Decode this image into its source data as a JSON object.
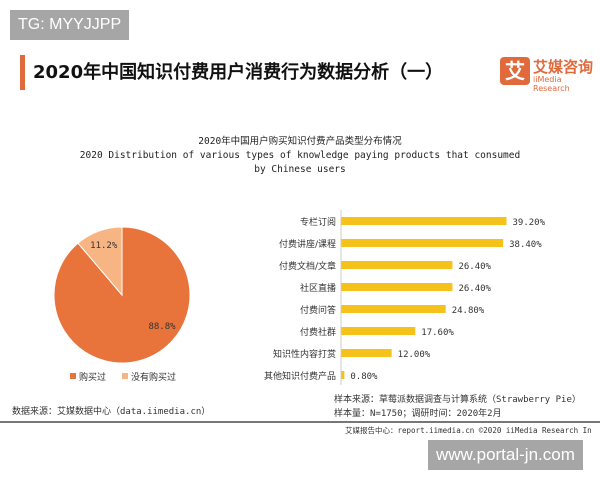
{
  "watermark_top": "TG: MYYJJPP",
  "watermark_bottom": "www.portal-jn.com",
  "header": {
    "title": "2020年中国知识付费用户消费行为数据分析（一）",
    "logo_mark": "艾",
    "logo_cn": "艾媒咨询",
    "logo_en": "iiMedia Research"
  },
  "chart_data": [
    {
      "type": "pie",
      "title": "2020年中国用户购买知识付费产品类型分布情况",
      "subtitle": "2020 Distribution of various types of knowledge paying products that consumed",
      "subtitle2": "by Chinese users",
      "slices": [
        {
          "name": "购买过",
          "value": 88.8,
          "label": "88.8%",
          "color": "#e8743b"
        },
        {
          "name": "没有购买过",
          "value": 11.2,
          "label": "11.2%",
          "color": "#f6b582"
        }
      ],
      "legend": "bottom"
    },
    {
      "type": "bar",
      "orientation": "horizontal",
      "color": "#f5c21b",
      "categories": [
        "专栏订阅",
        "付费讲座/课程",
        "付费文档/文章",
        "社区直播",
        "付费问答",
        "付费社群",
        "知识性内容打赏",
        "其他知识付费产品"
      ],
      "values": [
        39.2,
        38.4,
        26.4,
        26.4,
        24.8,
        17.6,
        12.0,
        0.8
      ],
      "labels": [
        "39.20%",
        "38.40%",
        "26.40%",
        "26.40%",
        "24.80%",
        "17.60%",
        "12.00%",
        "0.80%"
      ],
      "xlim": [
        0,
        45
      ]
    }
  ],
  "footer": {
    "source_left": "数据来源：艾媒数据中心（data.iimedia.cn）",
    "sample_source": "样本来源：草莓派数据调查与计算系统（Strawberry Pie）",
    "sample_size": "样本量：N=1750；调研时间：2020年2月",
    "report": "艾媒报告中心：report.iimedia.cn  ©2020  iiMedia Research  In"
  }
}
